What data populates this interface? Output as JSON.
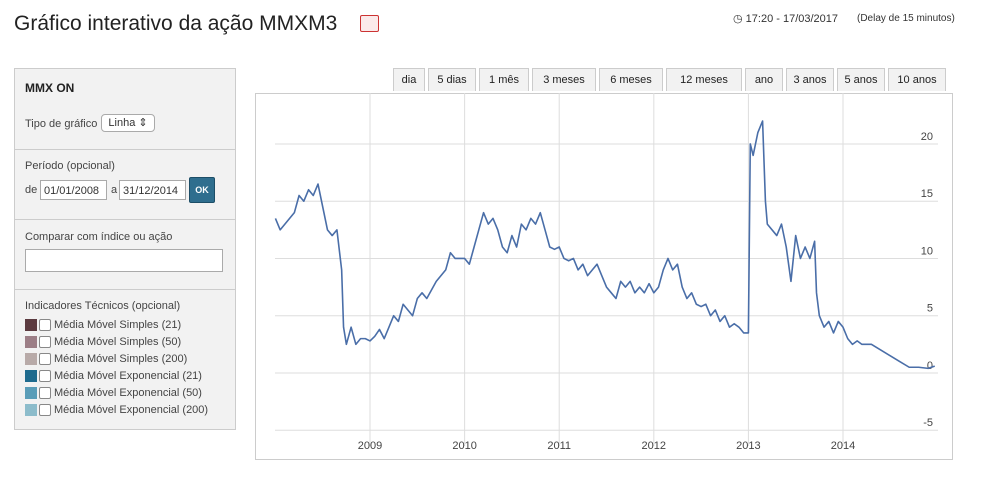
{
  "header": {
    "title": "Gráfico interativo da ação MMXM3",
    "time": "17:20 - 17/03/2017",
    "delay": "(Delay de 15 minutos)"
  },
  "panel": {
    "name": "MMX ON",
    "chart_type_label": "Tipo de gráfico",
    "chart_type_value": "Linha",
    "period_label": "Período (opcional)",
    "from_label": "de",
    "from_value": "01/01/2008",
    "to_label": "a",
    "to_value": "31/12/2014",
    "ok": "OK",
    "compare_label": "Comparar com índice ou ação",
    "indicators_label": "Indicadores Técnicos (opcional)",
    "indicators": [
      "Média Móvel Simples (21)",
      "Média Móvel Simples (50)",
      "Média Móvel Simples (200)",
      "Média Móvel Exponencial (21)",
      "Média Móvel Exponencial (50)",
      "Média Móvel Exponencial (200)"
    ]
  },
  "tabs": [
    "dia",
    "5 dias",
    "1 mês",
    "3 meses",
    "6 meses",
    "12 meses",
    "ano",
    "3 anos",
    "5 anos",
    "10 anos"
  ],
  "chart_data": {
    "type": "line",
    "color": "#4a6ea8",
    "grid": true,
    "xlim": [
      2007.784,
      2015.163
    ],
    "ylim": [
      -7.6,
      24.45
    ],
    "xticks": [
      2009,
      2010,
      2011,
      2012,
      2013,
      2014
    ],
    "yticks": [
      -5,
      0,
      5,
      10,
      15,
      20
    ],
    "x": [
      2008.0,
      2008.05,
      2008.1,
      2008.15,
      2008.2,
      2008.25,
      2008.3,
      2008.35,
      2008.4,
      2008.45,
      2008.5,
      2008.55,
      2008.6,
      2008.65,
      2008.7,
      2008.72,
      2008.75,
      2008.8,
      2008.85,
      2008.9,
      2008.95,
      2009.0,
      2009.05,
      2009.1,
      2009.15,
      2009.2,
      2009.25,
      2009.3,
      2009.35,
      2009.4,
      2009.45,
      2009.5,
      2009.55,
      2009.6,
      2009.7,
      2009.8,
      2009.85,
      2009.9,
      2010.0,
      2010.05,
      2010.1,
      2010.15,
      2010.2,
      2010.25,
      2010.3,
      2010.35,
      2010.4,
      2010.45,
      2010.5,
      2010.55,
      2010.6,
      2010.65,
      2010.7,
      2010.75,
      2010.8,
      2010.85,
      2010.9,
      2010.95,
      2011.0,
      2011.05,
      2011.1,
      2011.15,
      2011.2,
      2011.25,
      2011.3,
      2011.35,
      2011.4,
      2011.45,
      2011.5,
      2011.55,
      2011.6,
      2011.65,
      2011.7,
      2011.75,
      2011.8,
      2011.85,
      2011.9,
      2011.95,
      2012.0,
      2012.05,
      2012.1,
      2012.15,
      2012.2,
      2012.25,
      2012.3,
      2012.35,
      2012.4,
      2012.45,
      2012.5,
      2012.55,
      2012.6,
      2012.65,
      2012.7,
      2012.75,
      2012.8,
      2012.85,
      2012.9,
      2012.95,
      2013.0,
      2013.02,
      2013.05,
      2013.1,
      2013.15,
      2013.18,
      2013.2,
      2013.3,
      2013.35,
      2013.4,
      2013.45,
      2013.5,
      2013.55,
      2013.6,
      2013.65,
      2013.7,
      2013.72,
      2013.75,
      2013.8,
      2013.85,
      2013.9,
      2013.95,
      2014.0,
      2014.05,
      2014.1,
      2014.15,
      2014.2,
      2014.3,
      2014.4,
      2014.5,
      2014.6,
      2014.7,
      2014.8,
      2014.9,
      2014.97
    ],
    "values": [
      13.5,
      12.5,
      13,
      13.5,
      14,
      15.5,
      15,
      16,
      15.5,
      16.5,
      14.5,
      12.5,
      12,
      12.5,
      9,
      4,
      2.5,
      4,
      2.5,
      3,
      3,
      2.8,
      3.2,
      3.8,
      3,
      4,
      5,
      4.5,
      6,
      5.5,
      5,
      6.5,
      7,
      6.5,
      8,
      9,
      10.5,
      10,
      10,
      9.5,
      11,
      12.5,
      14,
      13,
      13.5,
      12.5,
      11,
      10.5,
      12,
      11,
      13,
      12.5,
      13.5,
      13,
      14,
      12.5,
      11,
      10.8,
      11,
      10,
      9.8,
      10,
      9,
      9.5,
      8.5,
      9,
      9.5,
      8.5,
      7.5,
      7,
      6.5,
      8,
      7.5,
      8,
      7,
      7.5,
      7,
      7.8,
      7,
      7.5,
      9,
      10,
      9,
      9.5,
      7.5,
      6.5,
      7,
      6,
      5.8,
      6,
      5,
      5.5,
      4.5,
      5,
      4,
      4.3,
      4,
      3.5,
      3.5,
      20,
      19,
      21,
      22,
      15,
      13,
      12,
      13,
      11,
      8,
      12,
      10,
      11,
      10,
      11.5,
      7,
      5,
      4,
      4.5,
      3.5,
      4.5,
      4,
      3,
      2.5,
      2.8,
      2.5,
      2.5,
      2,
      1.5,
      1,
      0.5,
      0.5,
      0.4,
      0.6
    ]
  }
}
